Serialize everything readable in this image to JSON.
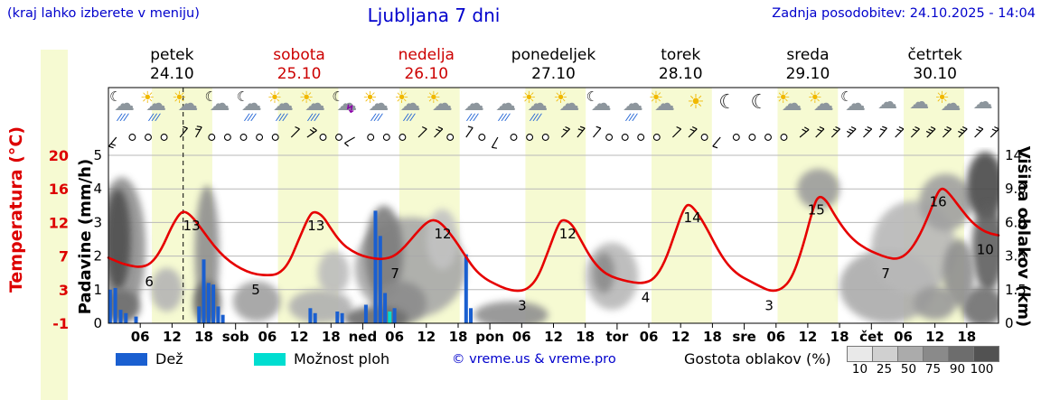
{
  "header": {
    "hint": "(kraj lahko izberete v meniju)",
    "title": "Ljubljana 7 dni",
    "updated": "Zadnja posodobitev: 24.10.2025 - 14:04"
  },
  "days": [
    {
      "name": "petek",
      "date": "24.10",
      "color": "#000000"
    },
    {
      "name": "sobota",
      "date": "25.10",
      "color": "#cc0000"
    },
    {
      "name": "nedelja",
      "date": "26.10",
      "color": "#cc0000"
    },
    {
      "name": "ponedeljek",
      "date": "27.10",
      "color": "#000000"
    },
    {
      "name": "torek",
      "date": "28.10",
      "color": "#000000"
    },
    {
      "name": "sreda",
      "date": "29.10",
      "color": "#000000"
    },
    {
      "name": "četrtek",
      "date": "30.10",
      "color": "#000000"
    }
  ],
  "axes": {
    "left_temp": {
      "label": "Temperatura (°C)",
      "color": "#dd0000",
      "ticks": [
        "20",
        "16",
        "12",
        "7",
        "3",
        "-1"
      ]
    },
    "left_precip": {
      "label": "Padavine (mm/h)",
      "ticks": [
        "5",
        "4",
        "3",
        "2",
        "1",
        "0"
      ]
    },
    "right_cloud": {
      "label": "Višina oblakov (km)",
      "ticks": [
        "14",
        "9.0",
        "6.0",
        "3.5",
        "1.5",
        "0"
      ]
    },
    "x_ticks": [
      "06",
      "12",
      "18",
      "sob",
      "06",
      "12",
      "18",
      "ned",
      "06",
      "12",
      "18",
      "pon",
      "06",
      "12",
      "18",
      "tor",
      "06",
      "12",
      "18",
      "sre",
      "06",
      "12",
      "18",
      "čet",
      "06",
      "12",
      "18"
    ]
  },
  "legend": {
    "rain_label": "Dež",
    "rain_color": "#1a5fd0",
    "showers_label": "Možnost ploh",
    "showers_color": "#00ddd0",
    "credit": "© vreme.us & vreme.pro",
    "cloud_density_label": "Gostota oblakov (%)",
    "cloud_density_steps": [
      {
        "value": "10",
        "color": "#e9e9e9"
      },
      {
        "value": "25",
        "color": "#d0d0d0"
      },
      {
        "value": "50",
        "color": "#ababab"
      },
      {
        "value": "75",
        "color": "#8a8a8a"
      },
      {
        "value": "90",
        "color": "#6d6d6d"
      },
      {
        "value": "100",
        "color": "#525252"
      }
    ]
  },
  "icons": [
    "moon-cloud-rain",
    "sun-cloud-rain",
    "sun-cloud",
    "moon-cloud",
    "moon-cloud-rain",
    "sun-cloud-rain",
    "sun-cloud-rain",
    "moon-cloud-thunder",
    "sun-cloud-rain",
    "sun-cloud-rain",
    "sun-cloud",
    "cloud-rain",
    "cloud-rain",
    "sun-cloud-rain",
    "sun-cloud",
    "moon-cloud",
    "cloud-rain",
    "sun-cloud",
    "sun",
    "moon",
    "moon",
    "sun-cloud",
    "sun-cloud",
    "moon-cloud",
    "cloud",
    "cloud",
    "sun-cloud",
    "cloud"
  ],
  "wind": [
    "b:230:2",
    "c",
    "c",
    "c",
    "b:50:1",
    "b:60:2",
    "c",
    "c",
    "c",
    "c",
    "c",
    "b:45:1",
    "b:35:2",
    "c",
    "c",
    "b:210:1",
    "c",
    "c",
    "c",
    "b:45:1",
    "b:45:2",
    "c",
    "b:55:1",
    "c",
    "b:240:1",
    "c",
    "c",
    "c",
    "b:45:2",
    "b:50:2",
    "b:50:1",
    "c",
    "c",
    "c",
    "c",
    "b:45:1",
    "b:45:2",
    "c",
    "b:230:1",
    "c",
    "c",
    "c",
    "c",
    "b:40:2",
    "b:45:2",
    "b:45:2",
    "b:45:3",
    "b:45:2",
    "b:50:2",
    "b:45:2",
    "b:45:2",
    "b:45:3",
    "b:45:2",
    "b:45:3",
    "b:45:2",
    "b:45:2"
  ],
  "chart_data": {
    "type": "line",
    "title": "Ljubljana 7 dni",
    "x_range_hours": [
      0,
      168
    ],
    "x_origin": "petek 24.10 00:00",
    "now_hour": 14.1,
    "day_band_color": "#f6fad2",
    "day_bands": [
      [
        8.2,
        19.6
      ],
      [
        32.0,
        43.4
      ],
      [
        54.9,
        66.3
      ],
      [
        78.7,
        90.1
      ],
      [
        102.5,
        113.9
      ],
      [
        126.3,
        137.7
      ],
      [
        150.1,
        161.5
      ]
    ],
    "temperature": {
      "name": "Temperatura",
      "unit": "°C",
      "color": "#e60000",
      "axis_range": [
        -1,
        20
      ],
      "points": [
        [
          0,
          7.2
        ],
        [
          2,
          6.6
        ],
        [
          4,
          6.2
        ],
        [
          6,
          6.0
        ],
        [
          8,
          6.4
        ],
        [
          10,
          8.2
        ],
        [
          12,
          11.2
        ],
        [
          13.5,
          12.8
        ],
        [
          14.5,
          13.0
        ],
        [
          16,
          12.2
        ],
        [
          18,
          10.4
        ],
        [
          20,
          8.6
        ],
        [
          22,
          7.2
        ],
        [
          24,
          6.2
        ],
        [
          26,
          5.5
        ],
        [
          28,
          5.1
        ],
        [
          30,
          5.0
        ],
        [
          32,
          5.1
        ],
        [
          34,
          6.4
        ],
        [
          36,
          9.6
        ],
        [
          38,
          12.6
        ],
        [
          39,
          13.0
        ],
        [
          40.5,
          12.4
        ],
        [
          42,
          10.8
        ],
        [
          44,
          9.0
        ],
        [
          46,
          8.0
        ],
        [
          48,
          7.4
        ],
        [
          50,
          7.1
        ],
        [
          52,
          7.0
        ],
        [
          54,
          7.4
        ],
        [
          56,
          8.6
        ],
        [
          58,
          10.2
        ],
        [
          60,
          11.6
        ],
        [
          61.5,
          12.0
        ],
        [
          63,
          11.4
        ],
        [
          65,
          9.8
        ],
        [
          67,
          7.8
        ],
        [
          69,
          5.8
        ],
        [
          71,
          4.6
        ],
        [
          73,
          3.9
        ],
        [
          75,
          3.3
        ],
        [
          77,
          3.0
        ],
        [
          79,
          3.2
        ],
        [
          81,
          4.6
        ],
        [
          83,
          8.0
        ],
        [
          85,
          11.6
        ],
        [
          86,
          12.0
        ],
        [
          87.5,
          11.4
        ],
        [
          89,
          9.6
        ],
        [
          91,
          7.2
        ],
        [
          93,
          5.6
        ],
        [
          95,
          4.8
        ],
        [
          97,
          4.4
        ],
        [
          99,
          4.1
        ],
        [
          101,
          4.0
        ],
        [
          103,
          4.5
        ],
        [
          105,
          6.6
        ],
        [
          107,
          10.4
        ],
        [
          108.5,
          13.2
        ],
        [
          109.5,
          14.0
        ],
        [
          111,
          13.0
        ],
        [
          113,
          10.8
        ],
        [
          115,
          8.2
        ],
        [
          117,
          6.2
        ],
        [
          119,
          5.0
        ],
        [
          121,
          4.3
        ],
        [
          123,
          3.6
        ],
        [
          125,
          3.0
        ],
        [
          127,
          3.2
        ],
        [
          129,
          4.6
        ],
        [
          131,
          8.4
        ],
        [
          133,
          13.4
        ],
        [
          134,
          15.0
        ],
        [
          135.5,
          14.4
        ],
        [
          137,
          12.6
        ],
        [
          139,
          10.6
        ],
        [
          141,
          9.2
        ],
        [
          143,
          8.3
        ],
        [
          145,
          7.7
        ],
        [
          147,
          7.2
        ],
        [
          149,
          7.0
        ],
        [
          151,
          7.8
        ],
        [
          153,
          9.8
        ],
        [
          155,
          12.8
        ],
        [
          156.5,
          15.4
        ],
        [
          157.5,
          16.0
        ],
        [
          159,
          15.0
        ],
        [
          161,
          13.2
        ],
        [
          163,
          11.6
        ],
        [
          165,
          10.6
        ],
        [
          166.5,
          10.2
        ],
        [
          168,
          10.0
        ]
      ]
    },
    "temperature_labels": [
      {
        "t": 7.7,
        "value": 6
      },
      {
        "t": 15.7,
        "value": 13
      },
      {
        "t": 27.8,
        "value": 5
      },
      {
        "t": 39.2,
        "value": 13
      },
      {
        "t": 54.1,
        "value": 7
      },
      {
        "t": 63.1,
        "value": 12
      },
      {
        "t": 78.1,
        "value": 3
      },
      {
        "t": 86.7,
        "value": 12
      },
      {
        "t": 101.4,
        "value": 4
      },
      {
        "t": 110.2,
        "value": 14
      },
      {
        "t": 124.7,
        "value": 3
      },
      {
        "t": 133.6,
        "value": 15
      },
      {
        "t": 146.7,
        "value": 7
      },
      {
        "t": 156.6,
        "value": 16
      },
      {
        "t": 165.5,
        "value": 10
      }
    ],
    "precipitation": {
      "name": "Dež",
      "unit": "mm/h",
      "axis_range": [
        0,
        5
      ],
      "bars": [
        {
          "t": 0.3,
          "mm": 1.0
        },
        {
          "t": 1.3,
          "mm": 1.05
        },
        {
          "t": 2.3,
          "mm": 0.4
        },
        {
          "t": 3.3,
          "mm": 0.3
        },
        {
          "t": 5.2,
          "mm": 0.2
        },
        {
          "t": 17.1,
          "mm": 0.5
        },
        {
          "t": 18.0,
          "mm": 1.9
        },
        {
          "t": 18.9,
          "mm": 1.2
        },
        {
          "t": 19.8,
          "mm": 1.15
        },
        {
          "t": 20.7,
          "mm": 0.5
        },
        {
          "t": 21.6,
          "mm": 0.25
        },
        {
          "t": 38.1,
          "mm": 0.45
        },
        {
          "t": 39.0,
          "mm": 0.3
        },
        {
          "t": 43.2,
          "mm": 0.35
        },
        {
          "t": 44.1,
          "mm": 0.3
        },
        {
          "t": 48.6,
          "mm": 0.55
        },
        {
          "t": 50.4,
          "mm": 3.35
        },
        {
          "t": 51.3,
          "mm": 2.6
        },
        {
          "t": 52.2,
          "mm": 0.9
        },
        {
          "t": 53.1,
          "mm": 0.35,
          "kind": "showers"
        },
        {
          "t": 54.0,
          "mm": 0.45
        },
        {
          "t": 67.5,
          "mm": 2.05
        },
        {
          "t": 68.4,
          "mm": 0.45
        }
      ]
    },
    "cloud_height_axis": {
      "name": "Višina oblakov",
      "unit": "km",
      "ticks": [
        "0",
        "1.5",
        "3.5",
        "6.0",
        "9.0",
        "14"
      ]
    },
    "clouds": [
      {
        "t": 2.5,
        "f": 0.45,
        "rt": 4.5,
        "rf": 0.42,
        "color": "#909090"
      },
      {
        "t": 1.8,
        "f": 0.5,
        "rt": 2.4,
        "rf": 0.3,
        "color": "#4f4f4f"
      },
      {
        "t": 2.5,
        "f": 0.1,
        "rt": 3.5,
        "rf": 0.1,
        "color": "#6f6f6f"
      },
      {
        "t": 11,
        "f": 0.2,
        "rt": 3,
        "rf": 0.13,
        "color": "#b5b5b5"
      },
      {
        "t": 18.6,
        "f": 0.42,
        "rt": 2.3,
        "rf": 0.4,
        "color": "#8f8f8f"
      },
      {
        "t": 18.6,
        "f": 0.12,
        "rt": 2.6,
        "rf": 0.13,
        "color": "#686868"
      },
      {
        "t": 28,
        "f": 0.13,
        "rt": 4.5,
        "rf": 0.12,
        "color": "#a0a0a0"
      },
      {
        "t": 40,
        "f": 0.1,
        "rt": 6,
        "rf": 0.1,
        "color": "#b0b0b0"
      },
      {
        "t": 42.5,
        "f": 0.3,
        "rt": 3,
        "rf": 0.13,
        "color": "#bcbcbc"
      },
      {
        "t": 57,
        "f": 0.33,
        "rt": 10.5,
        "rf": 0.3,
        "color": "#a8a8a8"
      },
      {
        "t": 52,
        "f": 0.42,
        "rt": 3.6,
        "rf": 0.28,
        "color": "#7d7d7d"
      },
      {
        "t": 55,
        "f": 0.12,
        "rt": 5,
        "rf": 0.13,
        "color": "#8c8c8c"
      },
      {
        "t": 50.5,
        "f": 0.03,
        "rt": 6,
        "rf": 0.07,
        "color": "#6d6d6d"
      },
      {
        "t": 63,
        "f": 0.5,
        "rt": 3,
        "rf": 0.18,
        "color": "#c2c2c2"
      },
      {
        "t": 76,
        "f": 0.05,
        "rt": 7,
        "rf": 0.08,
        "color": "#909090"
      },
      {
        "t": 95,
        "f": 0.28,
        "rt": 5,
        "rf": 0.2,
        "color": "#b8b8b8"
      },
      {
        "t": 93.5,
        "f": 0.3,
        "rt": 2,
        "rf": 0.12,
        "color": "#8c8c8c"
      },
      {
        "t": 134,
        "f": 0.8,
        "rt": 4,
        "rf": 0.12,
        "color": "#9c9c9c"
      },
      {
        "t": 147,
        "f": 0.22,
        "rt": 9,
        "rf": 0.22,
        "color": "#ababab"
      },
      {
        "t": 152,
        "f": 0.45,
        "rt": 8,
        "rf": 0.28,
        "color": "#b8b8b8"
      },
      {
        "t": 158,
        "f": 0.72,
        "rt": 5,
        "rf": 0.17,
        "color": "#a0a0a0"
      },
      {
        "t": 165.5,
        "f": 0.82,
        "rt": 3.5,
        "rf": 0.2,
        "color": "#4a4a4a"
      },
      {
        "t": 166,
        "f": 0.45,
        "rt": 3,
        "rf": 0.26,
        "color": "#5e5e5e"
      },
      {
        "t": 165,
        "f": 0.1,
        "rt": 4,
        "rf": 0.12,
        "color": "#707070"
      },
      {
        "t": 160.5,
        "f": 0.3,
        "rt": 3,
        "rf": 0.2,
        "color": "#8f8f8f"
      },
      {
        "t": 156,
        "f": 0.12,
        "rt": 4,
        "rf": 0.1,
        "color": "#9a9a9a"
      }
    ]
  }
}
